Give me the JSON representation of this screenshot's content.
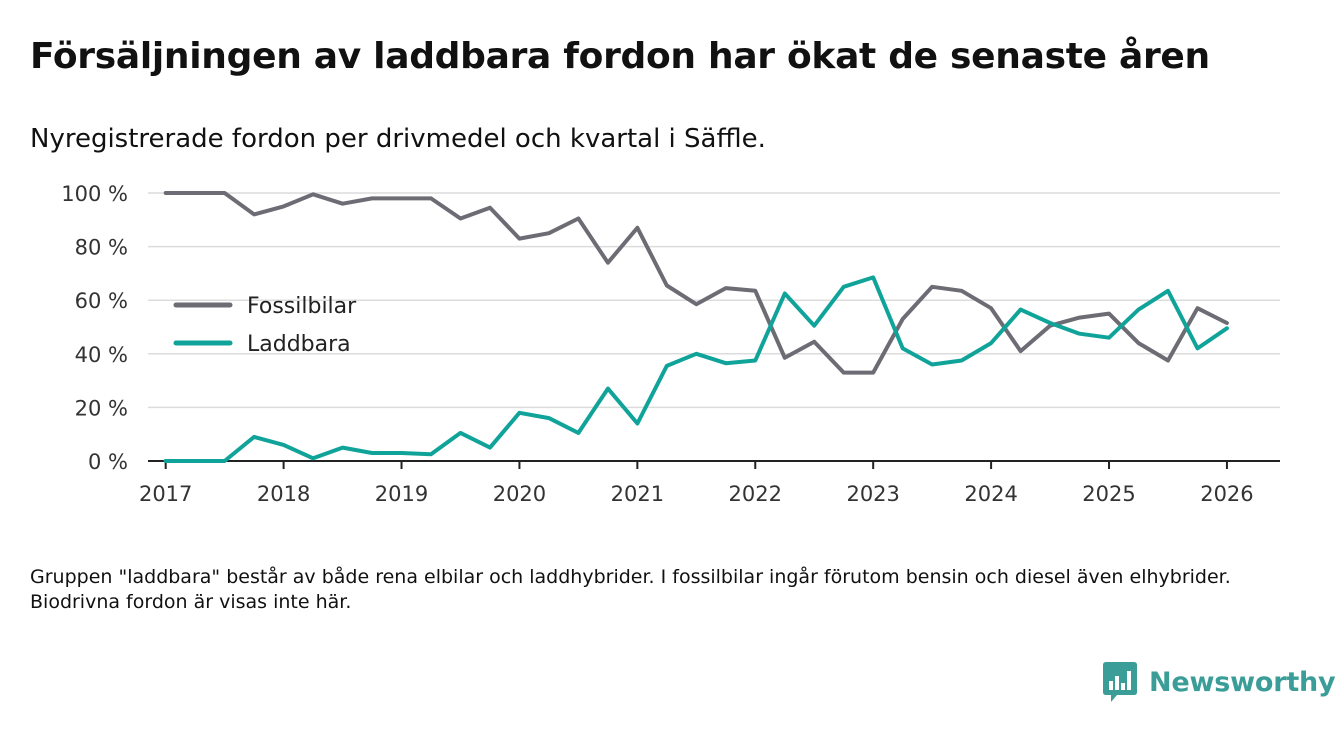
{
  "title": "Försäljningen av laddbara fordon har ökat de senaste åren",
  "subtitle": "Nyregistrerade fordon per drivmedel och kvartal i Säffle.",
  "note": "Gruppen \"laddbara\" består av både rena elbilar och laddhybrider. I fossilbilar ingår förutom bensin och diesel även elhybrider. Biodrivna fordon är visas inte här.",
  "logo": {
    "text": "Newsworthy",
    "icon": "bar-chart-icon",
    "color": "#3a9d98"
  },
  "chart_data": {
    "type": "line",
    "title": "Försäljningen av laddbara fordon har ökat de senaste åren",
    "subtitle": "Nyregistrerade fordon per drivmedel och kvartal i Säffle.",
    "xlabel": "",
    "ylabel": "",
    "xlim": [
      2016.85,
      2026.45
    ],
    "ylim": [
      0,
      100
    ],
    "y_ticks": [
      0,
      20,
      40,
      60,
      80,
      100
    ],
    "y_tick_labels": [
      "0 %",
      "20 %",
      "40 %",
      "60 %",
      "80 %",
      "100 %"
    ],
    "x_ticks": [
      2017,
      2018,
      2019,
      2020,
      2021,
      2022,
      2023,
      2024,
      2025,
      2026
    ],
    "x_tick_labels": [
      "2017",
      "2018",
      "2019",
      "2020",
      "2021",
      "2022",
      "2023",
      "2024",
      "2025",
      "2026"
    ],
    "grid": true,
    "legend": "middle-left",
    "x": [
      2017.0,
      2017.25,
      2017.5,
      2017.75,
      2018.0,
      2018.25,
      2018.5,
      2018.75,
      2019.0,
      2019.25,
      2019.5,
      2019.75,
      2020.0,
      2020.25,
      2020.5,
      2020.75,
      2021.0,
      2021.25,
      2021.5,
      2021.75,
      2022.0,
      2022.25,
      2022.5,
      2022.75,
      2023.0,
      2023.25,
      2023.5,
      2023.75,
      2024.0,
      2024.25,
      2024.5,
      2024.75,
      2025.0,
      2025.25,
      2025.5,
      2025.75,
      2026.0
    ],
    "series": [
      {
        "name": "Fossilbilar",
        "color": "#6d6c74",
        "values": [
          100,
          100,
          100,
          92,
          95,
          99.5,
          96,
          98,
          98,
          98,
          90.5,
          94.5,
          83,
          85,
          90.5,
          74,
          87,
          65.5,
          58.5,
          64.5,
          63.5,
          38.5,
          44.5,
          33,
          33,
          53,
          65,
          63.5,
          57,
          41,
          50.5,
          53.5,
          55,
          44,
          37.5,
          57,
          51.5
        ]
      },
      {
        "name": "Laddbara",
        "color": "#10a39a",
        "values": [
          0,
          0,
          0,
          9,
          6,
          1,
          5,
          3,
          3,
          2.5,
          10.5,
          5,
          18,
          16,
          10.5,
          27,
          14,
          35.5,
          40,
          36.5,
          37.5,
          62.5,
          50.5,
          65,
          68.5,
          42,
          36,
          37.5,
          44,
          56.5,
          51.5,
          47.5,
          46,
          56.5,
          63.5,
          42,
          49.5
        ]
      }
    ]
  }
}
